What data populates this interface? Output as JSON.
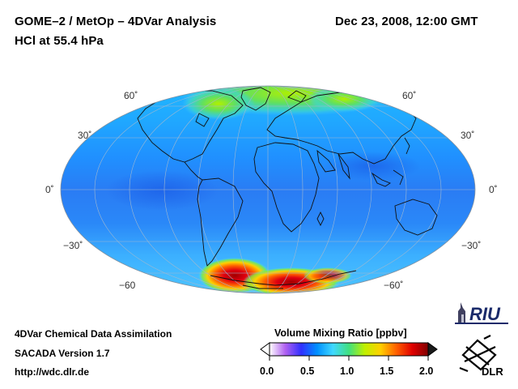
{
  "header": {
    "title_line1": "GOME–2 / MetOp – 4DVar Analysis",
    "title_line2": "HCl at 55.4 hPa",
    "datetime": "Dec 23, 2008, 12:00 GMT"
  },
  "map": {
    "projection": "Hammer-Aitoff",
    "quantity": "HCl volume mixing ratio",
    "lat_labels_left": [
      "60˚",
      "30˚",
      "0˚",
      "−30˚",
      "−60"
    ],
    "lat_labels_right": [
      "60˚",
      "30˚",
      "0˚",
      "−30˚",
      "−60˚"
    ]
  },
  "colorbar": {
    "title": "Volume Mixing Ratio [ppbv]",
    "ticks": [
      "0.0",
      "0.5",
      "1.0",
      "1.5",
      "2.0"
    ],
    "range": [
      0.0,
      2.0
    ],
    "colors": [
      "#ffffff",
      "#b060f0",
      "#3030ff",
      "#00a0ff",
      "#40d8ff",
      "#40e080",
      "#c0f000",
      "#ffd000",
      "#ff6000",
      "#e00000",
      "#800000"
    ]
  },
  "footer": {
    "line1": "4DVar Chemical Data Assimilation",
    "line2": "SACADA Version 1.7",
    "line3": "http://wdc.dlr.de"
  },
  "logos": {
    "riu": "RIU",
    "dlr": "DLR"
  }
}
